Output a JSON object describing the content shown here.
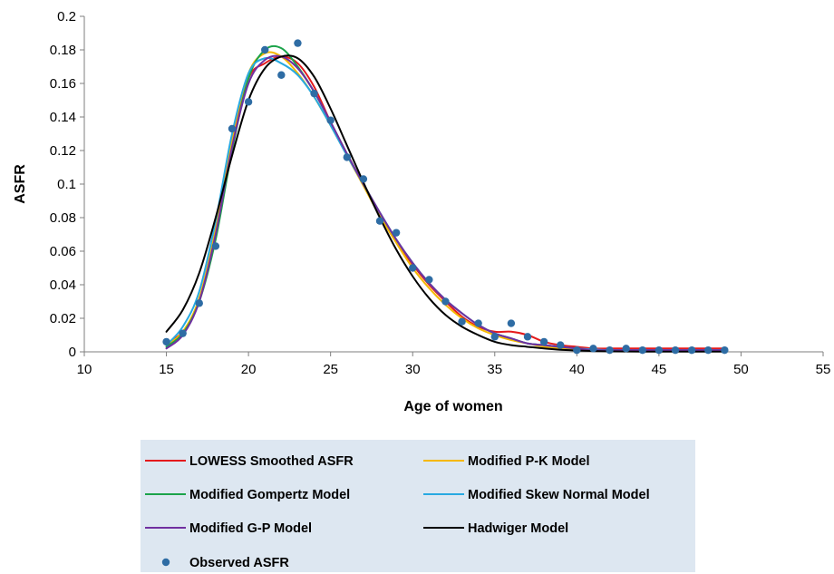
{
  "chart_data": {
    "type": "line",
    "xlabel": "Age of women",
    "ylabel": "ASFR",
    "xlim": [
      10,
      55
    ],
    "ylim": [
      0,
      0.2
    ],
    "x_ticks": [
      10,
      15,
      20,
      25,
      30,
      35,
      40,
      45,
      50,
      55
    ],
    "y_ticks": [
      0,
      0.02,
      0.04,
      0.06,
      0.08,
      0.1,
      0.12,
      0.14,
      0.16,
      0.18,
      0.2
    ],
    "y_tick_labels": [
      "0",
      "0.02",
      "0.04",
      "0.06",
      "0.08",
      "0.1",
      "0.12",
      "0.14",
      "0.16",
      "0.18",
      "0.2"
    ],
    "grid": false,
    "legend_position": "bottom",
    "x": [
      15,
      16,
      17,
      18,
      19,
      20,
      21,
      22,
      23,
      24,
      25,
      26,
      27,
      28,
      29,
      30,
      31,
      32,
      33,
      34,
      35,
      36,
      37,
      38,
      39,
      40,
      41,
      42,
      43,
      44,
      45,
      46,
      47,
      48,
      49
    ],
    "series": [
      {
        "name": "LOWESS Smoothed ASFR",
        "kind": "line",
        "color": "#e41a1c",
        "values": [
          0.005,
          0.012,
          0.03,
          0.07,
          0.125,
          0.163,
          0.172,
          0.176,
          0.172,
          0.158,
          0.137,
          0.118,
          0.1,
          0.083,
          0.066,
          0.052,
          0.04,
          0.03,
          0.021,
          0.015,
          0.012,
          0.012,
          0.01,
          0.006,
          0.004,
          0.003,
          0.002,
          0.002,
          0.002,
          0.002,
          0.002,
          0.002,
          0.002,
          0.002,
          0.002
        ]
      },
      {
        "name": "Modified P-K Model",
        "kind": "line",
        "color": "#f5b800",
        "values": [
          0.004,
          0.012,
          0.032,
          0.073,
          0.127,
          0.166,
          0.178,
          0.176,
          0.166,
          0.152,
          0.135,
          0.117,
          0.099,
          0.081,
          0.065,
          0.05,
          0.038,
          0.028,
          0.02,
          0.014,
          0.01,
          0.007,
          0.005,
          0.003,
          0.002,
          0.0015,
          0.001,
          0.001,
          0.001,
          0.001,
          0.001,
          0.001,
          0.001,
          0.001,
          0.001
        ]
      },
      {
        "name": "Modified Gompertz Model",
        "kind": "line",
        "color": "#1ba34a",
        "values": [
          0.003,
          0.011,
          0.03,
          0.067,
          0.12,
          0.163,
          0.18,
          0.181,
          0.17,
          0.155,
          0.137,
          0.118,
          0.1,
          0.083,
          0.067,
          0.053,
          0.041,
          0.031,
          0.023,
          0.016,
          0.011,
          0.008,
          0.005,
          0.004,
          0.003,
          0.002,
          0.001,
          0.001,
          0.001,
          0.001,
          0.001,
          0.001,
          0.001,
          0.001,
          0.001
        ]
      },
      {
        "name": "Modified Skew Normal Model",
        "kind": "line",
        "color": "#27a9e1",
        "values": [
          0.004,
          0.015,
          0.036,
          0.078,
          0.13,
          0.166,
          0.175,
          0.172,
          0.165,
          0.152,
          0.135,
          0.117,
          0.1,
          0.083,
          0.067,
          0.053,
          0.041,
          0.031,
          0.023,
          0.016,
          0.011,
          0.008,
          0.005,
          0.004,
          0.003,
          0.002,
          0.0015,
          0.001,
          0.001,
          0.001,
          0.001,
          0.001,
          0.001,
          0.001,
          0.001
        ]
      },
      {
        "name": "Modified G-P Model",
        "kind": "line",
        "color": "#7030a0",
        "values": [
          0.002,
          0.01,
          0.03,
          0.07,
          0.122,
          0.16,
          0.174,
          0.176,
          0.169,
          0.155,
          0.137,
          0.118,
          0.1,
          0.083,
          0.067,
          0.053,
          0.041,
          0.031,
          0.023,
          0.016,
          0.011,
          0.008,
          0.005,
          0.004,
          0.003,
          0.002,
          0.001,
          0.001,
          0.001,
          0.001,
          0.001,
          0.001,
          0.001,
          0.001,
          0.001
        ]
      },
      {
        "name": "Hadwiger Model",
        "kind": "line",
        "color": "#000000",
        "values": [
          0.012,
          0.025,
          0.047,
          0.08,
          0.117,
          0.15,
          0.169,
          0.176,
          0.175,
          0.164,
          0.145,
          0.123,
          0.101,
          0.08,
          0.061,
          0.045,
          0.032,
          0.022,
          0.015,
          0.01,
          0.006,
          0.004,
          0.003,
          0.002,
          0.0012,
          0.0008,
          0.0005,
          0.0003,
          0.0002,
          0.0001,
          0.0001,
          0.0001,
          0.0001,
          0.0001,
          0.0001
        ]
      },
      {
        "name": "Observed ASFR",
        "kind": "scatter",
        "color": "#2e6ca4",
        "values": [
          0.006,
          0.011,
          0.029,
          0.063,
          0.133,
          0.149,
          0.18,
          0.165,
          0.184,
          0.154,
          0.138,
          0.116,
          0.103,
          0.078,
          0.071,
          0.05,
          0.043,
          0.03,
          0.018,
          0.017,
          0.009,
          0.017,
          0.009,
          0.006,
          0.004,
          0.001,
          0.002,
          0.001,
          0.002,
          0.001,
          0.001,
          0.001,
          0.001,
          0.001,
          0.001
        ]
      }
    ]
  }
}
